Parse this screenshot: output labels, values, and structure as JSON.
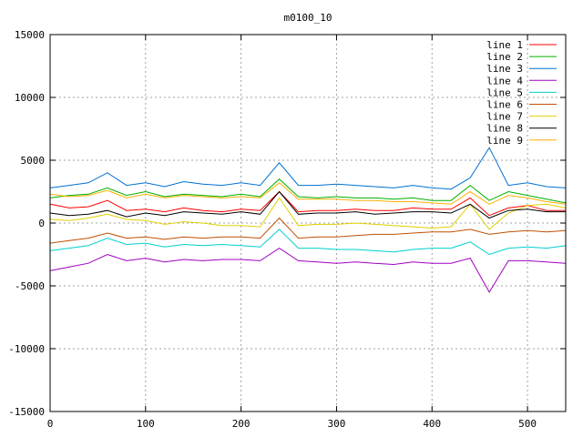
{
  "chart_data": {
    "type": "line",
    "title": "m0100_10",
    "xlabel": "",
    "ylabel": "",
    "xlim": [
      0,
      540
    ],
    "ylim": [
      -15000,
      15000
    ],
    "x_ticks": [
      0,
      100,
      200,
      300,
      400,
      500
    ],
    "y_ticks": [
      -15000,
      -10000,
      -5000,
      0,
      5000,
      10000,
      15000
    ],
    "grid": true,
    "legend_position": "top-right",
    "series": [
      {
        "name": "line 1",
        "color": "#ff0000",
        "x": [
          0,
          20,
          40,
          60,
          80,
          100,
          120,
          140,
          160,
          180,
          200,
          220,
          240,
          260,
          280,
          300,
          320,
          340,
          360,
          380,
          400,
          420,
          440,
          460,
          480,
          500,
          520,
          540
        ],
        "y": [
          1500,
          1200,
          1300,
          1800,
          1000,
          1100,
          900,
          1200,
          1000,
          900,
          1100,
          1000,
          2500,
          900,
          1000,
          1000,
          1100,
          1000,
          1000,
          1200,
          1100,
          1100,
          2000,
          600,
          1200,
          1400,
          1000,
          1000
        ]
      },
      {
        "name": "line 2",
        "color": "#00b000",
        "x": [
          0,
          20,
          40,
          60,
          80,
          100,
          120,
          140,
          160,
          180,
          200,
          220,
          240,
          260,
          280,
          300,
          320,
          340,
          360,
          380,
          400,
          420,
          440,
          460,
          480,
          500,
          520,
          540
        ],
        "y": [
          2000,
          2200,
          2300,
          2800,
          2200,
          2500,
          2100,
          2300,
          2200,
          2100,
          2300,
          2100,
          3500,
          2100,
          2000,
          2100,
          2000,
          2000,
          1900,
          2000,
          1800,
          1800,
          3000,
          1800,
          2500,
          2200,
          1900,
          1600
        ]
      },
      {
        "name": "line 3",
        "color": "#0070d0",
        "x": [
          0,
          20,
          40,
          60,
          80,
          100,
          120,
          140,
          160,
          180,
          200,
          220,
          240,
          260,
          280,
          300,
          320,
          340,
          360,
          380,
          400,
          420,
          440,
          460,
          480,
          500,
          520,
          540
        ],
        "y": [
          2800,
          3000,
          3200,
          4000,
          3000,
          3200,
          2900,
          3300,
          3100,
          3000,
          3200,
          3000,
          4800,
          3000,
          3000,
          3100,
          3000,
          2900,
          2800,
          3000,
          2800,
          2700,
          3600,
          6000,
          3000,
          3200,
          2900,
          2800
        ]
      },
      {
        "name": "line 4",
        "color": "#a000c0",
        "x": [
          0,
          20,
          40,
          60,
          80,
          100,
          120,
          140,
          160,
          180,
          200,
          220,
          240,
          260,
          280,
          300,
          320,
          340,
          360,
          380,
          400,
          420,
          440,
          460,
          480,
          500,
          520,
          540
        ],
        "y": [
          -3800,
          -3500,
          -3200,
          -2500,
          -3000,
          -2800,
          -3100,
          -2900,
          -3000,
          -2900,
          -2900,
          -3000,
          -2000,
          -3000,
          -3100,
          -3200,
          -3100,
          -3200,
          -3300,
          -3100,
          -3200,
          -3200,
          -2800,
          -5500,
          -3000,
          -3000,
          -3100,
          -3200
        ]
      },
      {
        "name": "line 5",
        "color": "#00d0d0",
        "x": [
          0,
          20,
          40,
          60,
          80,
          100,
          120,
          140,
          160,
          180,
          200,
          220,
          240,
          260,
          280,
          300,
          320,
          340,
          360,
          380,
          400,
          420,
          440,
          460,
          480,
          500,
          520,
          540
        ],
        "y": [
          -2200,
          -2000,
          -1800,
          -1200,
          -1700,
          -1600,
          -1900,
          -1700,
          -1800,
          -1700,
          -1800,
          -1900,
          -500,
          -2000,
          -2000,
          -2100,
          -2100,
          -2200,
          -2300,
          -2100,
          -2000,
          -2000,
          -1500,
          -2500,
          -2000,
          -1900,
          -2000,
          -1800
        ]
      },
      {
        "name": "line 6",
        "color": "#c05000",
        "x": [
          0,
          20,
          40,
          60,
          80,
          100,
          120,
          140,
          160,
          180,
          200,
          220,
          240,
          260,
          280,
          300,
          320,
          340,
          360,
          380,
          400,
          420,
          440,
          460,
          480,
          500,
          520,
          540
        ],
        "y": [
          -1600,
          -1400,
          -1200,
          -800,
          -1200,
          -1100,
          -1300,
          -1100,
          -1200,
          -1100,
          -1100,
          -1200,
          400,
          -1200,
          -1100,
          -1100,
          -1000,
          -900,
          -900,
          -800,
          -700,
          -700,
          -500,
          -900,
          -700,
          -600,
          -700,
          -600
        ]
      },
      {
        "name": "line 7",
        "color": "#e0d000",
        "x": [
          0,
          20,
          40,
          60,
          80,
          100,
          120,
          140,
          160,
          180,
          200,
          220,
          240,
          260,
          280,
          300,
          320,
          340,
          360,
          380,
          400,
          420,
          440,
          460,
          480,
          500,
          520,
          540
        ],
        "y": [
          300,
          200,
          400,
          700,
          300,
          200,
          -100,
          100,
          0,
          -200,
          -200,
          -300,
          2000,
          -200,
          -100,
          -100,
          0,
          -100,
          -200,
          -300,
          -400,
          -300,
          1500,
          -500,
          800,
          1400,
          1500,
          1200
        ]
      },
      {
        "name": "line 8",
        "color": "#000000",
        "x": [
          0,
          20,
          40,
          60,
          80,
          100,
          120,
          140,
          160,
          180,
          200,
          220,
          240,
          260,
          280,
          300,
          320,
          340,
          360,
          380,
          400,
          420,
          440,
          460,
          480,
          500,
          520,
          540
        ],
        "y": [
          800,
          600,
          700,
          1000,
          500,
          800,
          600,
          900,
          800,
          700,
          900,
          700,
          2500,
          700,
          800,
          800,
          900,
          700,
          800,
          900,
          900,
          800,
          1500,
          400,
          1000,
          1100,
          900,
          900
        ]
      },
      {
        "name": "line 9",
        "color": "#ffb000",
        "x": [
          0,
          20,
          40,
          60,
          80,
          100,
          120,
          140,
          160,
          180,
          200,
          220,
          240,
          260,
          280,
          300,
          320,
          340,
          360,
          380,
          400,
          420,
          440,
          460,
          480,
          500,
          520,
          540
        ],
        "y": [
          2300,
          2100,
          2200,
          2600,
          2000,
          2300,
          2000,
          2200,
          2100,
          2000,
          2100,
          2000,
          3200,
          1900,
          1900,
          1900,
          1800,
          1800,
          1700,
          1700,
          1600,
          1500,
          2500,
          1500,
          2200,
          2000,
          1700,
          1500
        ]
      }
    ]
  }
}
